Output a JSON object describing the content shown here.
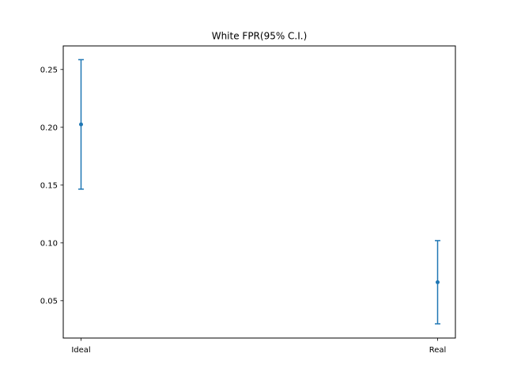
{
  "chart_data": {
    "type": "scatter",
    "title": "White FPR(95% C.I.)",
    "xlabel": "",
    "ylabel": "",
    "categories": [
      "Ideal",
      "Real"
    ],
    "series": [
      {
        "values": [
          0.2025,
          0.066
        ],
        "ci_lower": [
          0.1465,
          0.03
        ],
        "ci_upper": [
          0.2585,
          0.102
        ]
      }
    ],
    "ylim": [
      0.0177,
      0.2704
    ],
    "yticks": [
      0.05,
      0.1,
      0.15,
      0.2,
      0.25
    ],
    "ytick_labels": [
      "0.05",
      "0.10",
      "0.15",
      "0.20",
      "0.25"
    ],
    "grid": false,
    "legend": "none",
    "color": "#1f77b4"
  }
}
